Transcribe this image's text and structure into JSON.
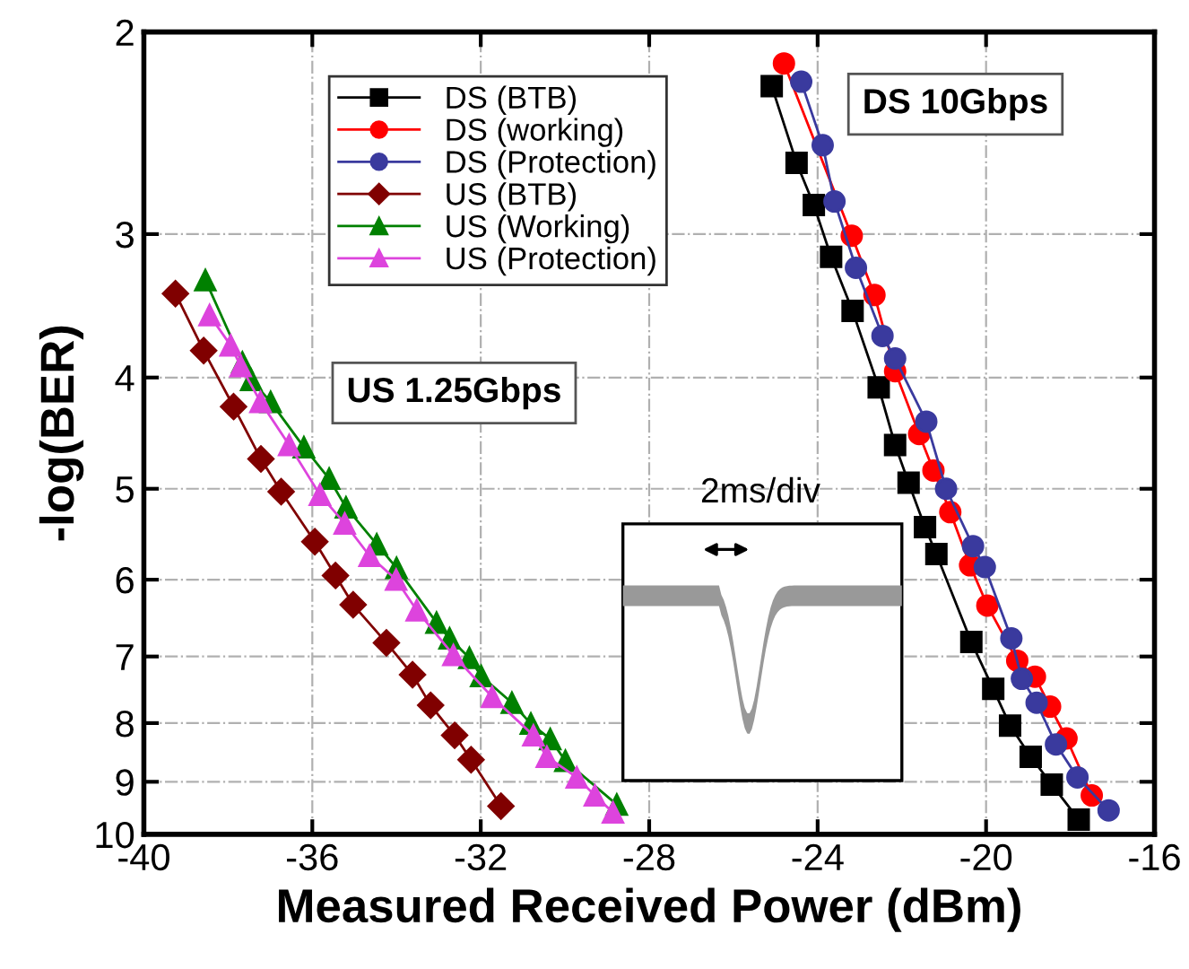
{
  "chart_data": {
    "type": "line",
    "xlabel": "Measured Received Power (dBm)",
    "ylabel": "-log(BER)",
    "xlim": [
      -40,
      -16
    ],
    "xticks": [
      -40,
      -36,
      -32,
      -28,
      -24,
      -20,
      -16
    ],
    "ylim": [
      10,
      2
    ],
    "yticks": [
      2,
      3,
      4,
      5,
      6,
      7,
      8,
      9,
      10
    ],
    "log": "y",
    "grid": true,
    "legend": "top left",
    "line_style": "solid",
    "annotations": [
      "DS 10Gbps",
      "US 1.25Gbps",
      "2ms/div"
    ],
    "series": [
      {
        "name": "DS (BTB)",
        "color": "#000000",
        "marker": "square",
        "x": [
          -25.09,
          -24.5,
          -24.09,
          -23.68,
          -23.17,
          -22.55,
          -22.16,
          -21.84,
          -21.45,
          -21.18,
          -20.35,
          -19.83,
          -19.43,
          -18.94,
          -18.44,
          -17.8
        ],
        "values": [
          2.23,
          2.6,
          2.83,
          3.14,
          3.5,
          4.08,
          4.58,
          4.94,
          5.4,
          5.7,
          6.8,
          7.47,
          8.04,
          8.56,
          9.05,
          9.71
        ]
      },
      {
        "name": "DS (working)",
        "color": "#ff0000",
        "marker": "circle",
        "x": [
          -24.8,
          -23.19,
          -22.65,
          -22.16,
          -21.59,
          -21.25,
          -20.85,
          -20.38,
          -19.97,
          -19.26,
          -18.84,
          -18.48,
          -18.09,
          -17.49
        ],
        "values": [
          2.13,
          3.01,
          3.39,
          3.95,
          4.48,
          4.82,
          5.24,
          5.83,
          6.32,
          7.06,
          7.29,
          7.74,
          8.25,
          9.25
        ]
      },
      {
        "name": "DS (Protection)",
        "color": "#3a3a9e",
        "marker": "circle",
        "x": [
          -24.39,
          -23.88,
          -23.6,
          -23.09,
          -22.46,
          -22.16,
          -21.42,
          -20.95,
          -20.31,
          -20.03,
          -19.4,
          -19.15,
          -18.8,
          -18.34,
          -17.83,
          -17.09
        ],
        "values": [
          2.21,
          2.51,
          2.81,
          3.21,
          3.68,
          3.85,
          4.37,
          5.0,
          5.61,
          5.85,
          6.75,
          7.32,
          7.68,
          8.35,
          8.92,
          9.53
        ]
      },
      {
        "name": "US (BTB)",
        "color": "#800000",
        "marker": "diamond",
        "x": [
          -39.25,
          -38.58,
          -37.87,
          -37.22,
          -36.74,
          -35.94,
          -35.45,
          -35.03,
          -34.24,
          -33.62,
          -33.19,
          -32.62,
          -32.23,
          -31.52
        ],
        "values": [
          3.38,
          3.79,
          4.24,
          4.71,
          5.03,
          5.56,
          5.95,
          6.31,
          6.81,
          7.26,
          7.72,
          8.2,
          8.61,
          9.45
        ]
      },
      {
        "name": "US (Working)",
        "color": "#008000",
        "marker": "triangle",
        "x": [
          -38.54,
          -37.66,
          -37.45,
          -36.99,
          -36.2,
          -35.6,
          -35.2,
          -34.47,
          -34.0,
          -33.05,
          -32.74,
          -32.27,
          -31.99,
          -31.26,
          -30.81,
          -30.35,
          -29.99,
          -28.77
        ],
        "values": [
          3.29,
          3.88,
          4.02,
          4.2,
          4.6,
          4.9,
          5.19,
          5.59,
          5.86,
          6.54,
          6.75,
          7.02,
          7.28,
          7.68,
          8.01,
          8.26,
          8.63,
          9.42
        ]
      },
      {
        "name": "US (Protection)",
        "color": "#dd44dd",
        "marker": "triangle",
        "x": [
          -38.44,
          -37.94,
          -37.7,
          -37.23,
          -36.55,
          -35.82,
          -35.23,
          -34.64,
          -34.01,
          -33.52,
          -32.65,
          -31.73,
          -30.75,
          -30.43,
          -29.72,
          -29.29,
          -28.86
        ],
        "values": [
          3.53,
          3.75,
          3.91,
          4.2,
          4.58,
          5.06,
          5.36,
          5.72,
          6.0,
          6.38,
          6.98,
          7.59,
          8.2,
          8.56,
          8.92,
          9.25,
          9.57
        ]
      }
    ]
  }
}
